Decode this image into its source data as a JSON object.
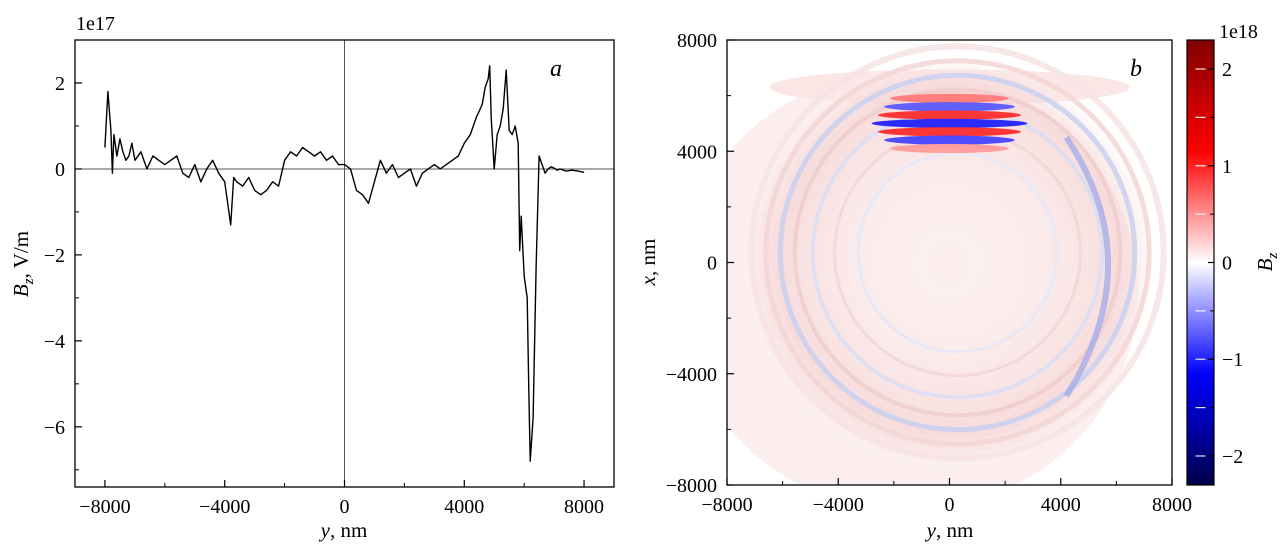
{
  "chart_data": [
    {
      "panel": "a",
      "type": "line",
      "panel_label": "a",
      "xlabel_var": "y",
      "xlabel_unit": ", nm",
      "ylabel_var": "B",
      "ylabel_sub": "z",
      "ylabel_unit": ", V/m",
      "offset_text": "1e17",
      "xlim": [
        -9000,
        9000
      ],
      "ylim": [
        -7.4,
        3.0
      ],
      "xticks": [
        -8000,
        -4000,
        0,
        4000,
        8000
      ],
      "xtick_labels": [
        "−8000",
        "−4000",
        "0",
        "4000",
        "8000"
      ],
      "yticks": [
        2,
        0,
        -2,
        -4,
        -6
      ],
      "ytick_labels": [
        "2",
        "0",
        "−2",
        "−4",
        "−6"
      ],
      "reference_lines": {
        "x": 0,
        "y": 0
      },
      "grid": false,
      "series": [
        {
          "color": "#000000",
          "x": [
            -8000,
            -7900,
            -7800,
            -7750,
            -7700,
            -7600,
            -7500,
            -7400,
            -7300,
            -7200,
            -7100,
            -7000,
            -6800,
            -6600,
            -6400,
            -6200,
            -6000,
            -5800,
            -5600,
            -5400,
            -5200,
            -5000,
            -4800,
            -4600,
            -4400,
            -4200,
            -4000,
            -3800,
            -3700,
            -3600,
            -3400,
            -3200,
            -3000,
            -2800,
            -2600,
            -2400,
            -2200,
            -2000,
            -1800,
            -1600,
            -1400,
            -1200,
            -1000,
            -800,
            -600,
            -400,
            -200,
            0,
            200,
            400,
            600,
            800,
            1000,
            1200,
            1400,
            1600,
            1800,
            2000,
            2200,
            2400,
            2600,
            2800,
            3000,
            3200,
            3400,
            3600,
            3800,
            4000,
            4200,
            4400,
            4600,
            4700,
            4800,
            4850,
            4900,
            5000,
            5100,
            5200,
            5300,
            5400,
            5500,
            5600,
            5700,
            5800,
            5850,
            5900,
            6000,
            6100,
            6150,
            6200,
            6300,
            6400,
            6500,
            6600,
            6700,
            6800,
            6900,
            7000,
            7100,
            7200,
            7400,
            7600,
            7800,
            8000
          ],
          "y": [
            0.5,
            1.8,
            0.9,
            -0.1,
            0.8,
            0.3,
            0.7,
            0.4,
            0.2,
            0.3,
            0.6,
            0.2,
            0.4,
            0.0,
            0.3,
            0.2,
            0.1,
            0.2,
            0.3,
            -0.1,
            -0.2,
            0.1,
            -0.3,
            0.0,
            0.2,
            -0.1,
            -0.3,
            -1.3,
            -0.2,
            -0.3,
            -0.4,
            -0.2,
            -0.5,
            -0.6,
            -0.5,
            -0.3,
            -0.4,
            0.2,
            0.4,
            0.3,
            0.5,
            0.4,
            0.3,
            0.4,
            0.2,
            0.3,
            0.1,
            0.1,
            0.0,
            -0.5,
            -0.6,
            -0.8,
            -0.3,
            0.2,
            -0.1,
            0.1,
            -0.2,
            -0.1,
            0.0,
            -0.4,
            -0.1,
            0.0,
            0.1,
            0.0,
            0.1,
            0.2,
            0.3,
            0.6,
            0.8,
            1.2,
            1.5,
            1.9,
            2.1,
            2.4,
            1.2,
            0.0,
            0.8,
            1.0,
            1.4,
            2.3,
            0.9,
            0.8,
            1.0,
            0.6,
            -1.9,
            -1.1,
            -2.5,
            -3.0,
            -5.0,
            -6.8,
            -5.8,
            -2.3,
            0.3,
            0.1,
            -0.1,
            0.0,
            0.05,
            0.02,
            -0.03,
            0.0,
            -0.05,
            -0.03,
            -0.05,
            -0.08
          ]
        }
      ]
    },
    {
      "panel": "b",
      "type": "heatmap",
      "panel_label": "b",
      "xlabel_var": "y",
      "xlabel_unit": ", nm",
      "ylabel_var": "x",
      "ylabel_unit": ", nm",
      "xlim": [
        -8000,
        8000
      ],
      "ylim": [
        -8000,
        8000
      ],
      "xticks": [
        -8000,
        -4000,
        0,
        4000,
        8000
      ],
      "xtick_labels": [
        "−8000",
        "−4000",
        "0",
        "4000",
        "8000"
      ],
      "yticks": [
        8000,
        4000,
        0,
        -4000,
        -8000
      ],
      "ytick_labels": [
        "8000",
        "4000",
        "0",
        "−4000",
        "−8000"
      ],
      "colormap": "seismic",
      "colorbar": {
        "label_var": "B",
        "label_sub": "z",
        "offset_text": "1e18",
        "range": [
          -2.3,
          2.3
        ],
        "ticks": [
          2,
          1,
          0,
          -1,
          -2
        ],
        "tick_labels": [
          "2",
          "1",
          "0",
          "−1",
          "−2"
        ],
        "colors": {
          "top": "#800000",
          "mid_high": "#ff0000",
          "center": "#ffffff",
          "mid_low": "#0000ff",
          "bottom": "#00004c"
        }
      },
      "features": {
        "stripes_center_x": 5000,
        "stripes_y_range": [
          -2800,
          2800
        ],
        "stripe_values": [
          1.2,
          -1.5,
          1.9,
          -2.0,
          1.9,
          -1.7,
          0.9
        ],
        "ring_center": [
          0,
          0
        ],
        "ring_radius": 6500
      }
    }
  ]
}
